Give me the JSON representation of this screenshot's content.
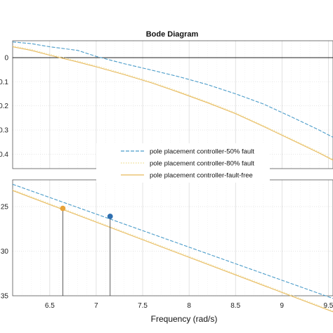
{
  "chart_data": {
    "type": "line",
    "title": "Bode Diagram",
    "xlabel": "Frequency  (rad/s)",
    "xlim": [
      6.1,
      9.55
    ],
    "xticks": [
      "6.5",
      "7",
      "7.5",
      "8",
      "8.5",
      "9",
      "9.5"
    ],
    "legend": {
      "placement": "inside-top-panel",
      "entries": [
        {
          "label": "pole placement controller-50% fault",
          "color": "#4b9cc9",
          "dash": "dashed"
        },
        {
          "label": "pole placement controller-80% fault",
          "color": "#eddc8c",
          "dash": "dotted"
        },
        {
          "label": "pole placement controller-fault-free",
          "color": "#e7b95a",
          "dash": "solid"
        }
      ]
    },
    "panels": [
      {
        "name": "top",
        "ylim": [
          -0.46,
          0.07
        ],
        "yticks": [
          "0",
          "0.1",
          "0.2",
          "0.3",
          "0.4"
        ],
        "ytick_values": [
          0,
          -0.1,
          -0.2,
          -0.3,
          -0.4
        ],
        "reference_line": 0,
        "grid": true,
        "series": [
          {
            "name": "pole placement controller-50% fault",
            "color": "#4b9cc9",
            "x": [
              6.1,
              6.3,
              6.5,
              6.8,
              7.0,
              7.3,
              7.6,
              7.9,
              8.2,
              8.5,
              8.8,
              9.1,
              9.4,
              9.55
            ],
            "y": [
              0.065,
              0.058,
              0.045,
              0.03,
              0.005,
              -0.025,
              -0.052,
              -0.08,
              -0.112,
              -0.15,
              -0.192,
              -0.245,
              -0.3,
              -0.33
            ]
          },
          {
            "name": "pole placement controller-fault-free",
            "color": "#e7b95a",
            "x": [
              6.1,
              6.3,
              6.5,
              6.8,
              7.0,
              7.3,
              7.6,
              7.9,
              8.2,
              8.5,
              8.8,
              9.1,
              9.4,
              9.55
            ],
            "y": [
              0.045,
              0.03,
              0.01,
              -0.018,
              -0.038,
              -0.07,
              -0.105,
              -0.145,
              -0.187,
              -0.232,
              -0.285,
              -0.34,
              -0.395,
              -0.425
            ]
          }
        ]
      },
      {
        "name": "bottom",
        "ylim": [
          -35.0,
          -22.0
        ],
        "yticks": [
          "25",
          "30",
          "35"
        ],
        "ytick_values": [
          -25,
          -30,
          -35
        ],
        "grid": true,
        "series": [
          {
            "name": "pole placement controller-50% fault",
            "color": "#4b9cc9",
            "x": [
              6.1,
              9.55
            ],
            "y": [
              -22.5,
              -35.3
            ]
          },
          {
            "name": "pole placement controller-fault-free",
            "color": "#e7b95a",
            "x": [
              6.1,
              9.55
            ],
            "y": [
              -23.2,
              -36.8
            ]
          }
        ],
        "markers": [
          {
            "series": "pole placement controller-fault-free",
            "color": "#e7a33a",
            "x": 6.64,
            "y": -25.2
          },
          {
            "series": "pole placement controller-50% fault",
            "color": "#2f6fb0",
            "x": 7.15,
            "y": -26.1
          }
        ]
      }
    ]
  }
}
